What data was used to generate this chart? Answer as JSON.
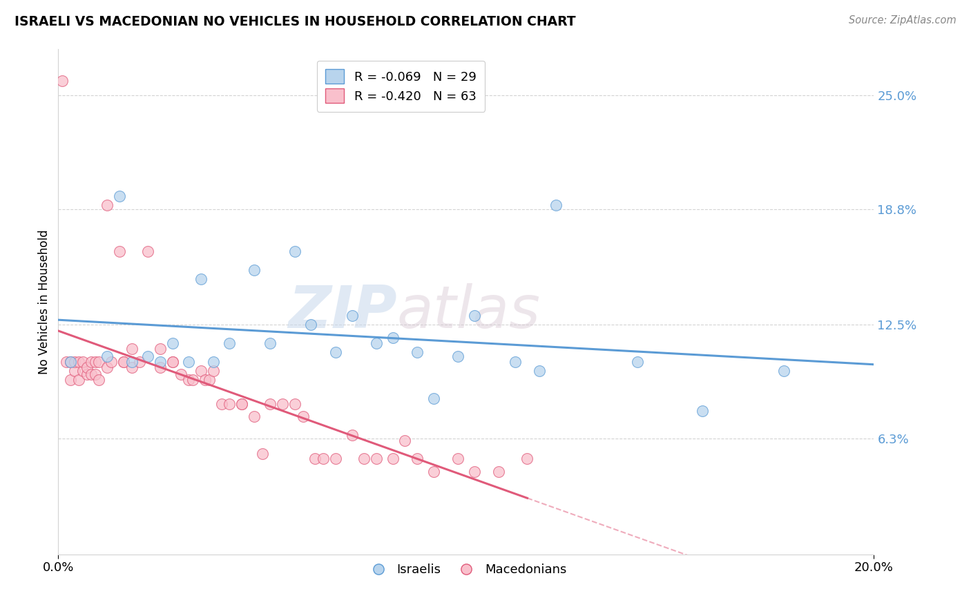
{
  "title": "ISRAELI VS MACEDONIAN NO VEHICLES IN HOUSEHOLD CORRELATION CHART",
  "source": "Source: ZipAtlas.com",
  "ylabel": "No Vehicles in Household",
  "yticks": [
    "25.0%",
    "18.8%",
    "12.5%",
    "6.3%"
  ],
  "ytick_vals": [
    0.25,
    0.188,
    0.125,
    0.063
  ],
  "xmin": 0.0,
  "xmax": 0.2,
  "ymin": 0.0,
  "ymax": 0.275,
  "legend_israeli": "R = -0.069   N = 29",
  "legend_macedonian": "R = -0.420   N = 63",
  "color_israeli": "#b8d4ed",
  "color_macedonian": "#f9c0cc",
  "line_color_israeli": "#5b9bd5",
  "line_color_macedonian": "#e05a7a",
  "watermark_zip": "ZIP",
  "watermark_atlas": "atlas",
  "israeli_x": [
    0.003,
    0.012,
    0.015,
    0.018,
    0.022,
    0.025,
    0.028,
    0.032,
    0.035,
    0.038,
    0.042,
    0.048,
    0.052,
    0.058,
    0.062,
    0.068,
    0.072,
    0.078,
    0.082,
    0.088,
    0.092,
    0.098,
    0.102,
    0.112,
    0.118,
    0.122,
    0.142,
    0.158,
    0.178
  ],
  "israeli_y": [
    0.105,
    0.108,
    0.195,
    0.105,
    0.108,
    0.105,
    0.115,
    0.105,
    0.15,
    0.105,
    0.115,
    0.155,
    0.115,
    0.165,
    0.125,
    0.11,
    0.13,
    0.115,
    0.118,
    0.11,
    0.085,
    0.108,
    0.13,
    0.105,
    0.1,
    0.19,
    0.105,
    0.078,
    0.1
  ],
  "macedonian_x": [
    0.001,
    0.002,
    0.003,
    0.003,
    0.004,
    0.004,
    0.005,
    0.005,
    0.006,
    0.006,
    0.007,
    0.007,
    0.008,
    0.008,
    0.009,
    0.009,
    0.01,
    0.01,
    0.012,
    0.012,
    0.013,
    0.015,
    0.016,
    0.016,
    0.018,
    0.018,
    0.02,
    0.022,
    0.025,
    0.025,
    0.028,
    0.028,
    0.03,
    0.032,
    0.033,
    0.035,
    0.036,
    0.037,
    0.038,
    0.04,
    0.042,
    0.045,
    0.045,
    0.048,
    0.05,
    0.052,
    0.055,
    0.058,
    0.06,
    0.063,
    0.065,
    0.068,
    0.072,
    0.075,
    0.078,
    0.082,
    0.085,
    0.088,
    0.092,
    0.098,
    0.102,
    0.108,
    0.115
  ],
  "macedonian_y": [
    0.258,
    0.105,
    0.105,
    0.095,
    0.1,
    0.105,
    0.095,
    0.105,
    0.1,
    0.105,
    0.098,
    0.102,
    0.098,
    0.105,
    0.098,
    0.105,
    0.105,
    0.095,
    0.19,
    0.102,
    0.105,
    0.165,
    0.105,
    0.105,
    0.102,
    0.112,
    0.105,
    0.165,
    0.102,
    0.112,
    0.105,
    0.105,
    0.098,
    0.095,
    0.095,
    0.1,
    0.095,
    0.095,
    0.1,
    0.082,
    0.082,
    0.082,
    0.082,
    0.075,
    0.055,
    0.082,
    0.082,
    0.082,
    0.075,
    0.052,
    0.052,
    0.052,
    0.065,
    0.052,
    0.052,
    0.052,
    0.062,
    0.052,
    0.045,
    0.052,
    0.045,
    0.045,
    0.052
  ]
}
